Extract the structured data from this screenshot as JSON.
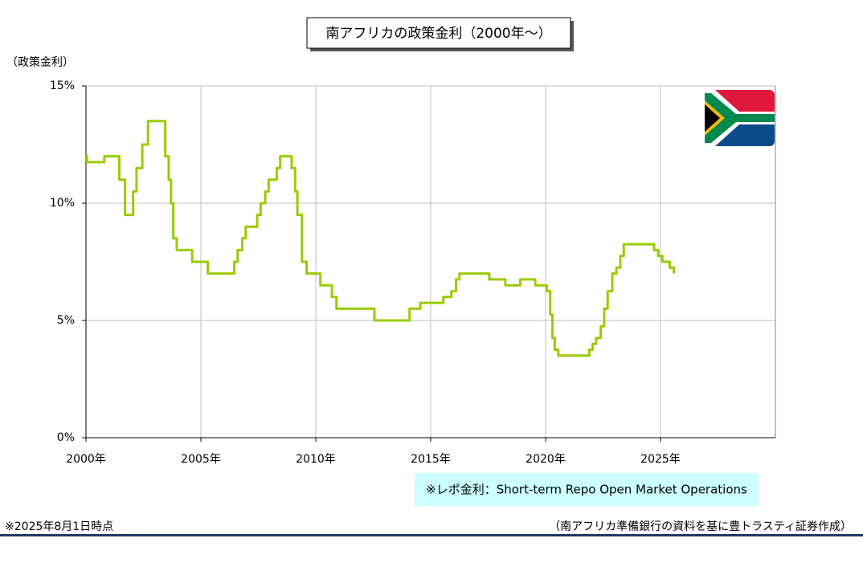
{
  "chart_data": {
    "type": "line",
    "title": "南アフリカの政策金利（2000年～）",
    "y_axis_label": "（政策金利）",
    "note": "※レポ金利：Short-term Repo Open Market Operations",
    "as_of": "※2025年8月1日時点",
    "source": "（南アフリカ準備銀行の資料を基に豊トラスティ証券作成）",
    "step": true,
    "grid": true,
    "xlim": [
      2000,
      2030
    ],
    "xticks": [
      {
        "value": 2000,
        "label": "2000年"
      },
      {
        "value": 2005,
        "label": "2005年"
      },
      {
        "value": 2010,
        "label": "2010年"
      },
      {
        "value": 2015,
        "label": "2015年"
      },
      {
        "value": 2020,
        "label": "2020年"
      },
      {
        "value": 2025,
        "label": "2025年"
      }
    ],
    "ylim": [
      0,
      15
    ],
    "yticks": [
      {
        "value": 0,
        "label": "0%"
      },
      {
        "value": 5,
        "label": "5%"
      },
      {
        "value": 10,
        "label": "10%"
      },
      {
        "value": 15,
        "label": "15%"
      }
    ],
    "x": [
      2000.0,
      2000.05,
      2000.8,
      2001.45,
      2001.7,
      2002.05,
      2002.2,
      2002.45,
      2002.7,
      2003.45,
      2003.6,
      2003.7,
      2003.8,
      2003.95,
      2004.62,
      2005.3,
      2006.45,
      2006.6,
      2006.8,
      2006.95,
      2007.45,
      2007.6,
      2007.8,
      2007.95,
      2008.3,
      2008.45,
      2008.95,
      2009.1,
      2009.2,
      2009.4,
      2009.6,
      2010.2,
      2010.7,
      2010.9,
      2012.55,
      2014.08,
      2014.55,
      2015.55,
      2015.9,
      2016.1,
      2016.25,
      2017.55,
      2018.25,
      2018.9,
      2019.55,
      2020.05,
      2020.2,
      2020.3,
      2020.4,
      2020.55,
      2021.9,
      2022.05,
      2022.2,
      2022.4,
      2022.55,
      2022.7,
      2022.9,
      2023.08,
      2023.25,
      2023.4,
      2024.72,
      2024.9,
      2025.08,
      2025.4,
      2025.58
    ],
    "series": [
      {
        "color": "#99cc00",
        "values": [
          12.0,
          11.75,
          12.0,
          11.0,
          9.5,
          10.5,
          11.5,
          12.5,
          13.5,
          12.0,
          11.0,
          10.0,
          8.5,
          8.0,
          7.5,
          7.0,
          7.5,
          8.0,
          8.5,
          9.0,
          9.5,
          10.0,
          10.5,
          11.0,
          11.5,
          12.0,
          11.5,
          10.5,
          9.5,
          7.5,
          7.0,
          6.5,
          6.0,
          5.5,
          5.0,
          5.5,
          5.75,
          6.0,
          6.25,
          6.75,
          7.0,
          6.75,
          6.5,
          6.75,
          6.5,
          6.25,
          5.25,
          4.25,
          3.75,
          3.5,
          3.75,
          4.0,
          4.25,
          4.75,
          5.5,
          6.25,
          7.0,
          7.25,
          7.75,
          8.25,
          8.0,
          7.75,
          7.5,
          7.25,
          7.0
        ]
      }
    ]
  }
}
